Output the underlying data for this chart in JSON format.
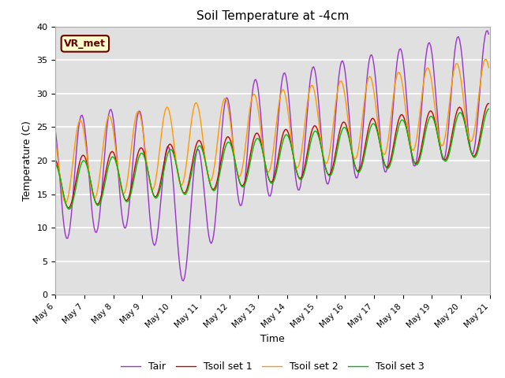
{
  "title": "Soil Temperature at -4cm",
  "xlabel": "Time",
  "ylabel": "Temperature (C)",
  "ylim": [
    0,
    40
  ],
  "yticks": [
    0,
    5,
    10,
    15,
    20,
    25,
    30,
    35,
    40
  ],
  "colors": {
    "Tair": "#9933cc",
    "Tsoil_set1": "#cc0000",
    "Tsoil_set2": "#ff9900",
    "Tsoil_set3": "#00bb00"
  },
  "annotation_text": "VR_met",
  "annotation_color": "#660000",
  "annotation_bg": "#ffffcc",
  "background_color": "#e0e0e0",
  "legend_labels": [
    "Tair",
    "Tsoil set 1",
    "Tsoil set 2",
    "Tsoil set 3"
  ]
}
